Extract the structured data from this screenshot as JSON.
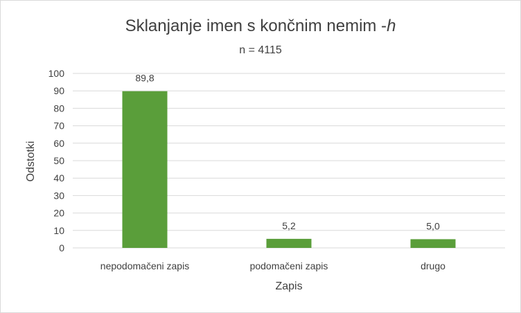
{
  "chart_data": {
    "type": "bar",
    "title_main": "Sklanjanje imen s končnim nemim -",
    "title_italic": "h",
    "subtitle": "n = 4115",
    "categories": [
      "nepodomačeni zapis",
      "podomačeni zapis",
      "drugo"
    ],
    "values": [
      89.8,
      5.2,
      5.0
    ],
    "data_labels": [
      "89,8",
      "5,2",
      "5,0"
    ],
    "xlabel": "Zapis",
    "ylabel": "Odstotki",
    "ylim": [
      0,
      100
    ],
    "yticks": [
      "0",
      "10",
      "20",
      "30",
      "40",
      "50",
      "60",
      "70",
      "80",
      "90",
      "100"
    ],
    "grid": true,
    "legend": "none",
    "colors": {
      "bar": "#5a9e3a",
      "grid": "#d9d9d9",
      "text": "#404040"
    }
  }
}
